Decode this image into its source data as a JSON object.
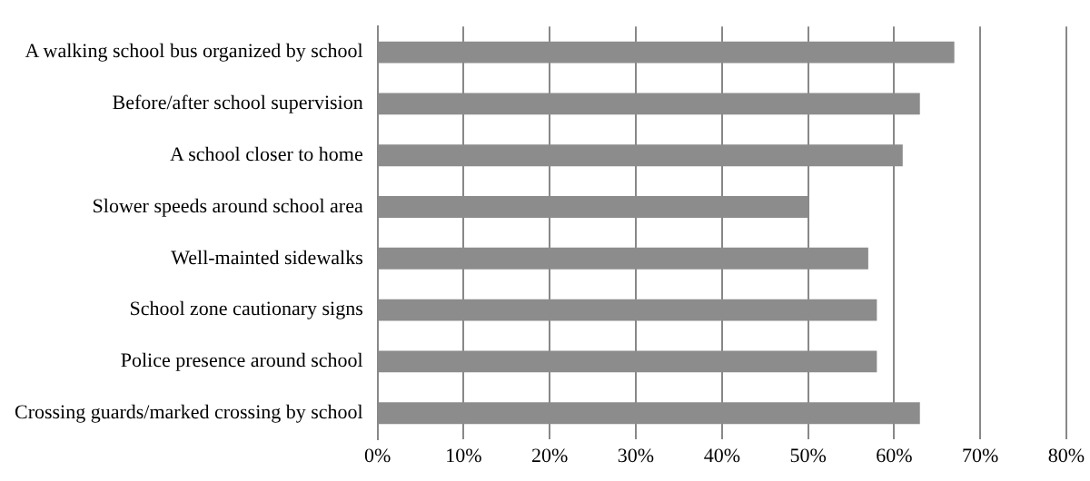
{
  "chart_data": {
    "type": "bar",
    "orientation": "horizontal",
    "categories": [
      "A walking school bus organized by school",
      "Before/after school supervision",
      "A school closer to home",
      "Slower speeds around school area",
      "Well-mainted sidewalks",
      "School zone cautionary signs",
      "Police presence around school",
      "Crossing guards/marked crossing by school"
    ],
    "values": [
      67,
      63,
      61,
      50,
      57,
      58,
      58,
      63
    ],
    "color": "#8c8c8c",
    "xlim": [
      0,
      80
    ],
    "xticks": [
      {
        "value": 0,
        "label": "0%"
      },
      {
        "value": 10,
        "label": "10%"
      },
      {
        "value": 20,
        "label": "20%"
      },
      {
        "value": 30,
        "label": "30%"
      },
      {
        "value": 40,
        "label": "40%"
      },
      {
        "value": 50,
        "label": "50%"
      },
      {
        "value": 60,
        "label": "60%"
      },
      {
        "value": 70,
        "label": "70%"
      },
      {
        "value": 80,
        "label": "80%"
      }
    ],
    "grid": "x",
    "legend": false
  }
}
